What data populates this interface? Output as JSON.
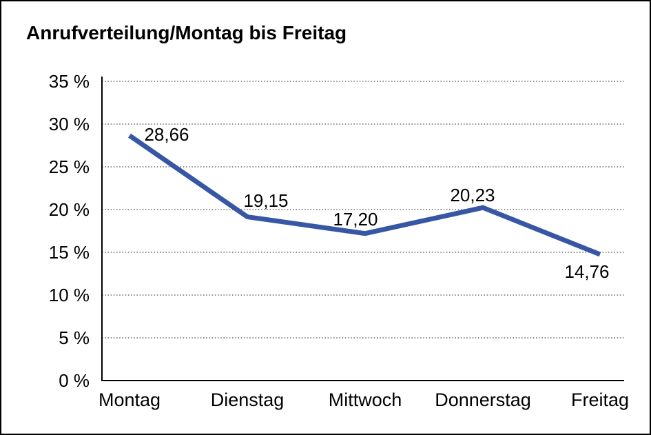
{
  "chart_data": {
    "type": "line",
    "title": "Anrufverteilung/Montag bis Freitag",
    "categories": [
      "Montag",
      "Dienstag",
      "Mittwoch",
      "Donnerstag",
      "Freitag"
    ],
    "values": [
      28.66,
      19.15,
      17.2,
      20.23,
      14.76
    ],
    "data_labels": [
      "28,66",
      "19,15",
      "17,20",
      "20,23",
      "14,76"
    ],
    "xlabel": "",
    "ylabel": "",
    "ylim": [
      0,
      35
    ],
    "y_ticks": [
      0,
      5,
      10,
      15,
      20,
      25,
      30,
      35
    ],
    "y_tick_labels": [
      "0 %",
      "5 %",
      "10 %",
      "15 %",
      "20 %",
      "25 %",
      "30 %",
      "35 %"
    ],
    "grid": "horizontal-dotted",
    "legend": "none"
  },
  "colors": {
    "line": "#3757A5",
    "grid": "#6E6E6E",
    "axis": "#000000",
    "text": "#000000",
    "background": "#FFFFFF",
    "frame_border": "#000000"
  }
}
